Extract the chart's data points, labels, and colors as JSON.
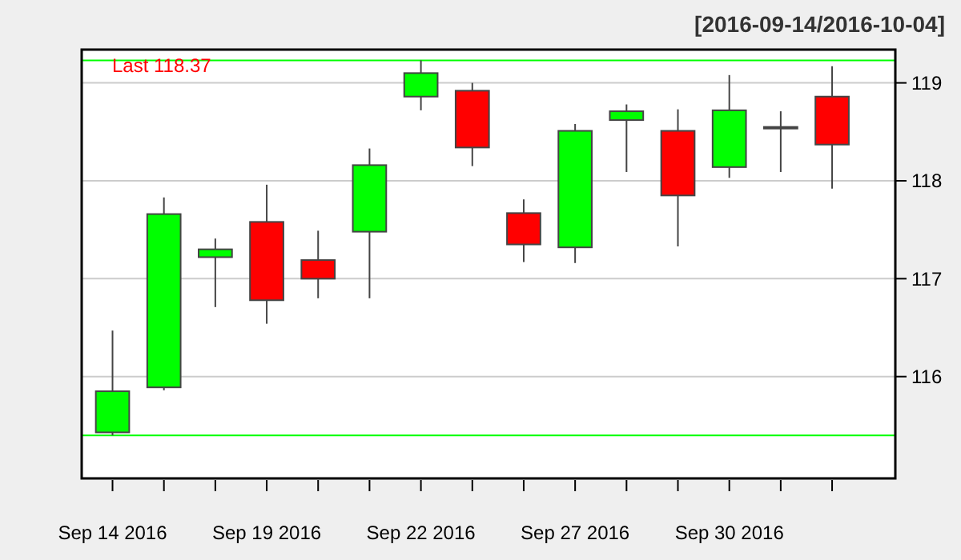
{
  "chart_data": {
    "type": "candlestick",
    "title": "[2016-09-14/2016-10-04]",
    "categories": [
      "Sep 14 2016",
      null,
      null,
      "Sep 19 2016",
      null,
      null,
      "Sep 22 2016",
      null,
      null,
      "Sep 27 2016",
      null,
      null,
      "Sep 30 2016",
      null,
      null
    ],
    "ohlc": [
      [
        115.43,
        116.47,
        115.4,
        115.85
      ],
      [
        115.89,
        117.83,
        115.86,
        117.66
      ],
      [
        117.22,
        117.41,
        116.71,
        117.3
      ],
      [
        117.58,
        117.96,
        116.54,
        116.78
      ],
      [
        117.19,
        117.49,
        116.8,
        117.0
      ],
      [
        117.48,
        118.33,
        116.8,
        118.16
      ],
      [
        118.86,
        119.23,
        118.72,
        119.1
      ],
      [
        118.92,
        119.0,
        118.15,
        118.34
      ],
      [
        117.67,
        117.81,
        117.17,
        117.35
      ],
      [
        117.32,
        118.58,
        117.16,
        118.51
      ],
      [
        118.62,
        118.78,
        118.09,
        118.71
      ],
      [
        118.51,
        118.73,
        117.33,
        117.85
      ],
      [
        118.14,
        119.08,
        118.03,
        118.72
      ],
      [
        118.55,
        118.71,
        118.09,
        118.55
      ],
      [
        118.86,
        119.17,
        117.92,
        118.37
      ]
    ],
    "colors": [
      "#00ff00",
      "#00ff00",
      "#00ff00",
      "#ff0000",
      "#ff0000",
      "#00ff00",
      "#00ff00",
      "#ff0000",
      "#ff0000",
      "#00ff00",
      "#00ff00",
      "#ff0000",
      "#00ff00",
      "#00ff00",
      "#ff0000"
    ],
    "ylim": [
      114.96,
      119.34
    ],
    "yticks": [
      116,
      117,
      118,
      119
    ],
    "grid": "y",
    "ref_lines": [
      {
        "axis": "y",
        "value": 119.23,
        "color": "#00ff00"
      },
      {
        "axis": "y",
        "value": 115.4,
        "color": "#00ff00"
      }
    ],
    "annotations": [
      "Last 118.37"
    ]
  }
}
